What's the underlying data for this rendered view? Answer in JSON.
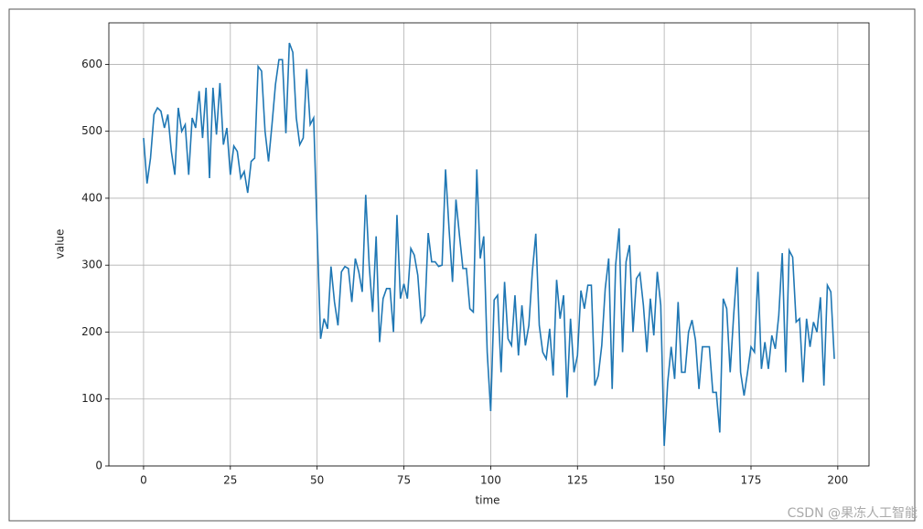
{
  "chart_data": {
    "type": "line",
    "x_label": "time",
    "y_label": "value",
    "watermark": "CSDN @果冻人工智能",
    "x": [
      0,
      1,
      2,
      3,
      4,
      5,
      6,
      7,
      8,
      9,
      10,
      11,
      12,
      13,
      14,
      15,
      16,
      17,
      18,
      19,
      20,
      21,
      22,
      23,
      24,
      25,
      26,
      27,
      28,
      29,
      30,
      31,
      32,
      33,
      34,
      35,
      36,
      37,
      38,
      39,
      40,
      41,
      42,
      43,
      44,
      45,
      46,
      47,
      48,
      49,
      50,
      51,
      52,
      53,
      54,
      55,
      56,
      57,
      58,
      59,
      60,
      61,
      62,
      63,
      64,
      65,
      66,
      67,
      68,
      69,
      70,
      71,
      72,
      73,
      74,
      75,
      76,
      77,
      78,
      79,
      80,
      81,
      82,
      83,
      84,
      85,
      86,
      87,
      88,
      89,
      90,
      91,
      92,
      93,
      94,
      95,
      96,
      97,
      98,
      99,
      100,
      101,
      102,
      103,
      104,
      105,
      106,
      107,
      108,
      109,
      110,
      111,
      112,
      113,
      114,
      115,
      116,
      117,
      118,
      119,
      120,
      121,
      122,
      123,
      124,
      125,
      126,
      127,
      128,
      129,
      130,
      131,
      132,
      133,
      134,
      135,
      136,
      137,
      138,
      139,
      140,
      141,
      142,
      143,
      144,
      145,
      146,
      147,
      148,
      149,
      150,
      151,
      152,
      153,
      154,
      155,
      156,
      157,
      158,
      159,
      160,
      161,
      162,
      163,
      164,
      165,
      166,
      167,
      168,
      169,
      170,
      171,
      172,
      173,
      174,
      175,
      176,
      177,
      178,
      179,
      180,
      181,
      182,
      183,
      184,
      185,
      186,
      187,
      188,
      189,
      190,
      191,
      192,
      193,
      194,
      195,
      196,
      197,
      198,
      199
    ],
    "series": [
      {
        "color": "#1f77b4",
        "values": [
          490,
          422,
          460,
          525,
          535,
          530,
          505,
          525,
          470,
          435,
          535,
          500,
          510,
          435,
          520,
          505,
          560,
          490,
          565,
          430,
          565,
          495,
          572,
          480,
          505,
          435,
          478,
          470,
          430,
          440,
          408,
          455,
          460,
          597,
          590,
          500,
          455,
          510,
          570,
          607,
          607,
          497,
          632,
          618,
          520,
          480,
          490,
          593,
          510,
          520,
          350,
          190,
          220,
          205,
          298,
          245,
          210,
          290,
          298,
          295,
          245,
          310,
          290,
          260,
          405,
          300,
          230,
          343,
          185,
          250,
          265,
          265,
          200,
          375,
          250,
          272,
          250,
          325,
          315,
          285,
          215,
          225,
          348,
          305,
          305,
          298,
          300,
          443,
          355,
          275,
          398,
          345,
          295,
          295,
          235,
          230,
          443,
          310,
          343,
          170,
          82,
          248,
          255,
          140,
          275,
          190,
          180,
          255,
          165,
          240,
          180,
          210,
          290,
          347,
          210,
          170,
          160,
          205,
          135,
          278,
          220,
          255,
          102,
          220,
          140,
          165,
          262,
          235,
          270,
          270,
          120,
          135,
          180,
          265,
          310,
          115,
          300,
          355,
          170,
          305,
          330,
          200,
          280,
          288,
          240,
          170,
          250,
          195,
          290,
          240,
          30,
          125,
          178,
          130,
          245,
          140,
          140,
          200,
          218,
          188,
          115,
          178,
          178,
          178,
          110,
          110,
          50,
          250,
          235,
          140,
          225,
          297,
          140,
          105,
          140,
          178,
          170,
          290,
          145,
          185,
          145,
          195,
          175,
          225,
          318,
          140,
          322,
          312,
          215,
          220,
          125,
          220,
          178,
          215,
          200,
          252,
          120,
          270,
          260,
          160
        ]
      }
    ],
    "xlim": [
      -10,
      209
    ],
    "ylim": [
      0,
      662
    ],
    "xticks": [
      0,
      25,
      50,
      75,
      100,
      125,
      150,
      175,
      200
    ],
    "yticks": [
      0,
      100,
      200,
      300,
      400,
      500,
      600
    ],
    "grid": true
  }
}
